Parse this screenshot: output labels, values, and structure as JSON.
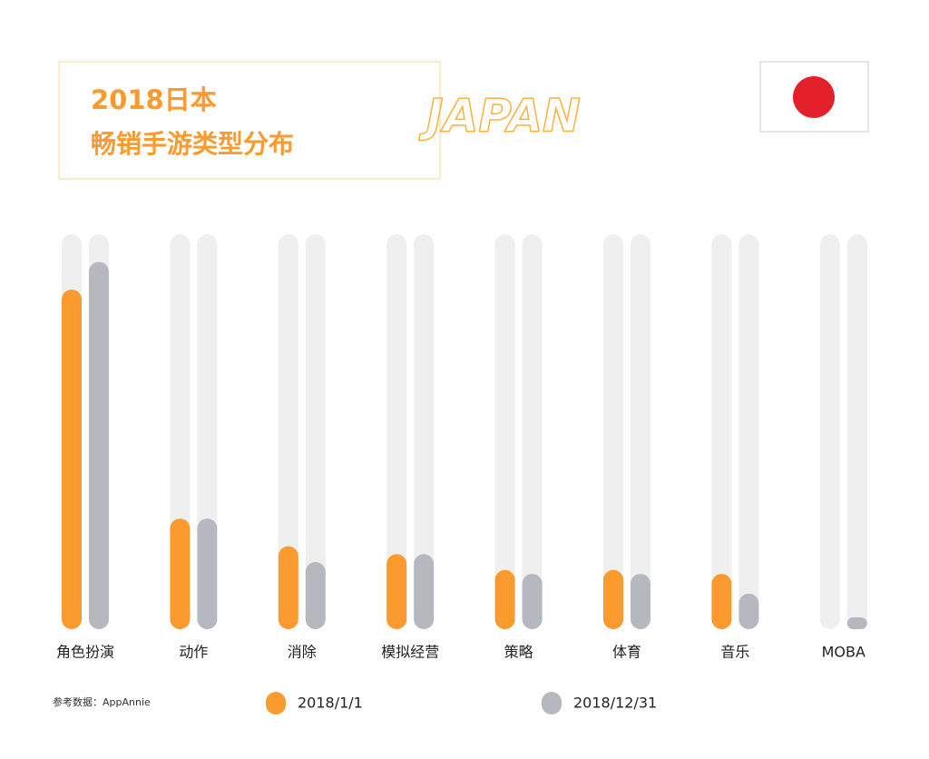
{
  "chart_data": {
    "type": "bar",
    "title": "2018日本",
    "subtitle": "畅销手游类型分布",
    "annotation": "JAPAN",
    "source": "参考数据：AppAnnie",
    "categories": [
      "角色扮演",
      "动作",
      "消除",
      "模拟经营",
      "策略",
      "体育",
      "音乐",
      "MOBA"
    ],
    "series": [
      {
        "name": "2018/1/1",
        "color": "#fb9a2e",
        "values": [
          86,
          28,
          21,
          19,
          15,
          15,
          14,
          0
        ]
      },
      {
        "name": "2018/12/31",
        "color": "#b5b8bf",
        "values": [
          93,
          28,
          17,
          19,
          14,
          14,
          9,
          3
        ]
      }
    ],
    "ylim": [
      0,
      100
    ]
  }
}
